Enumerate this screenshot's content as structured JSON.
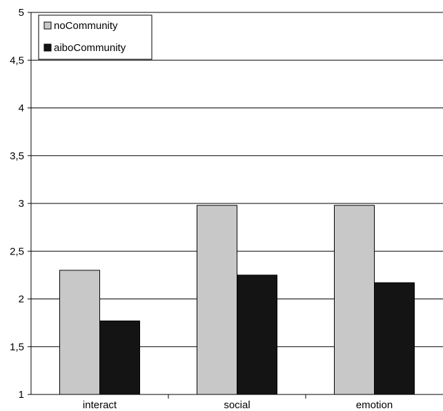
{
  "chart_data": {
    "type": "bar",
    "title": "",
    "xlabel": "",
    "ylabel": "",
    "categories": [
      "interact",
      "social",
      "emotion"
    ],
    "series": [
      {
        "name": "noCommunity",
        "values": [
          2.3,
          2.98,
          2.98
        ],
        "color": "#c8c8c8"
      },
      {
        "name": "aiboCommunity",
        "values": [
          1.77,
          2.25,
          2.17
        ],
        "color": "#141414"
      }
    ],
    "ylim": [
      1,
      5
    ],
    "yticks": [
      1,
      1.5,
      2,
      2.5,
      3,
      3.5,
      4,
      4.5,
      5
    ],
    "ytick_labels": [
      "1",
      "1,5",
      "2",
      "2,5",
      "3",
      "3,5",
      "4",
      "4,5",
      "5"
    ],
    "grid": true,
    "legend_position": "top-left"
  }
}
